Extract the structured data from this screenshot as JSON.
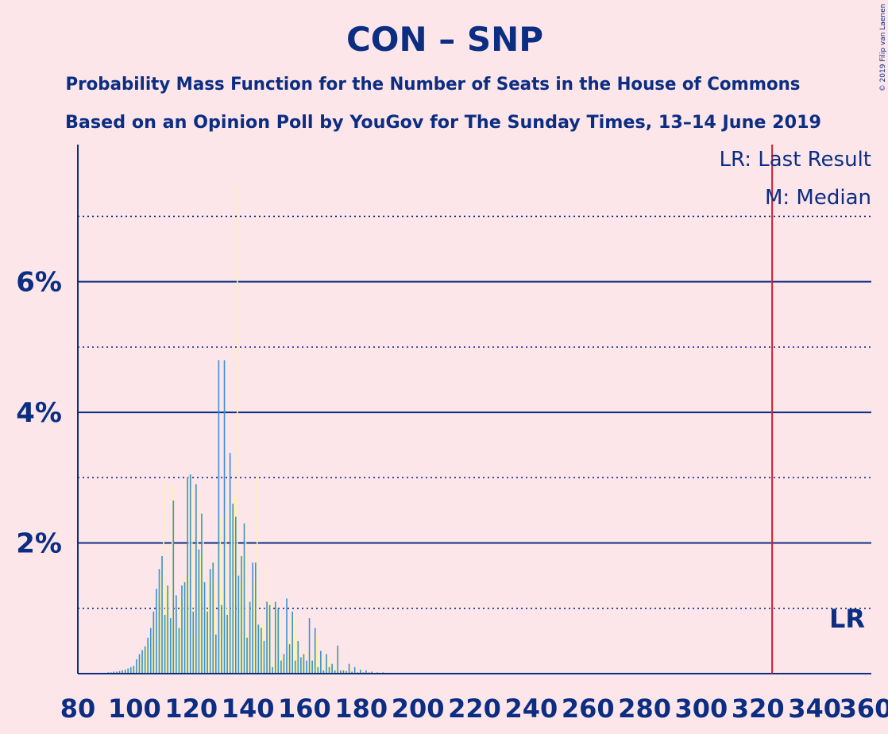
{
  "chart_data": {
    "type": "bar",
    "title": "CON – SNP",
    "subtitle_1": "Probability Mass Function for the Number of Seats in the House of Commons",
    "subtitle_2": "Based on an Opinion Poll by YouGov for The Sunday Times, 13–14 June 2019",
    "copyright": "© 2019 Filip van Laenen",
    "legend": {
      "last_result": "LR: Last Result",
      "median": "M: Median",
      "placement": "top-right"
    },
    "lr_label": "LR",
    "last_result_seats": 325,
    "xlim": [
      80,
      360
    ],
    "x_ticks": [
      80,
      100,
      120,
      140,
      160,
      180,
      200,
      220,
      240,
      260,
      280,
      300,
      320,
      340,
      360
    ],
    "x_tick_labels": [
      "80",
      "100",
      "120",
      "140",
      "160",
      "180",
      "200",
      "220",
      "240",
      "260",
      "280",
      "300",
      "320",
      "340",
      "360"
    ],
    "ylim": [
      0,
      8.1
    ],
    "y_major_ticks": [
      2,
      4,
      6
    ],
    "y_tick_labels": [
      "2%",
      "4%",
      "6%"
    ],
    "y_minor_gridlines": [
      1,
      3,
      5,
      7
    ],
    "colors": {
      "background": "#fde6ea",
      "text": "#0b2d82",
      "bar_blue": "#3a90d6",
      "bar_yellow": "#fff2a0",
      "last_result_line": "#cc2030"
    },
    "x": [
      90,
      91,
      92,
      93,
      94,
      95,
      96,
      97,
      98,
      99,
      100,
      101,
      102,
      103,
      104,
      105,
      106,
      107,
      108,
      109,
      110,
      111,
      112,
      113,
      114,
      115,
      116,
      117,
      118,
      119,
      120,
      121,
      122,
      123,
      124,
      125,
      126,
      127,
      128,
      129,
      130,
      131,
      132,
      133,
      134,
      135,
      136,
      137,
      138,
      139,
      140,
      141,
      142,
      143,
      144,
      145,
      146,
      147,
      148,
      149,
      150,
      151,
      152,
      153,
      154,
      155,
      156,
      157,
      158,
      159,
      160,
      161,
      162,
      163,
      164,
      165,
      166,
      167,
      168,
      169,
      170,
      171,
      172,
      173,
      174,
      175,
      176,
      177,
      178,
      179,
      180,
      181,
      182,
      183,
      184,
      185,
      186,
      187,
      188,
      189,
      190,
      191,
      192,
      193,
      194,
      195,
      196,
      197,
      198,
      199,
      200
    ],
    "series": [
      {
        "color_key": "bar_blue",
        "values": [
          0.01,
          0.02,
          0.02,
          0.03,
          0.03,
          0.04,
          0.05,
          0.06,
          0.08,
          0.1,
          0.12,
          0.22,
          0.3,
          0.36,
          0.42,
          0.55,
          0.7,
          0.95,
          1.3,
          1.6,
          1.8,
          0.9,
          1.35,
          0.85,
          2.65,
          1.2,
          0.7,
          1.35,
          1.4,
          3.0,
          3.05,
          0.95,
          2.9,
          1.9,
          2.45,
          1.4,
          0.95,
          1.6,
          1.7,
          0.6,
          4.8,
          1.05,
          4.8,
          0.9,
          3.38,
          2.6,
          2.4,
          1.5,
          1.8,
          2.3,
          0.55,
          1.1,
          1.7,
          1.7,
          0.75,
          0.7,
          0.5,
          1.1,
          1.05,
          0.1,
          1.1,
          1.0,
          0.2,
          0.3,
          1.15,
          0.45,
          0.95,
          0.2,
          0.5,
          0.25,
          0.3,
          0.2,
          0.85,
          0.2,
          0.7,
          0.1,
          0.35,
          0.05,
          0.3,
          0.1,
          0.15,
          0.05,
          0.43,
          0.05,
          0.05,
          0.04,
          0.15,
          0.03,
          0.1,
          0.02,
          0.06,
          0.02,
          0.05,
          0.02,
          0.03,
          0.01,
          0.02,
          0.01,
          0.02,
          0.01,
          0.01,
          0.01,
          0.01,
          0.01,
          0.005,
          0.005,
          0.005,
          0.005,
          0.005,
          0.005,
          0.005
        ]
      },
      {
        "color_key": "bar_yellow",
        "values": [
          0.0,
          0.01,
          0.01,
          0.02,
          0.02,
          0.03,
          0.04,
          0.05,
          0.06,
          0.08,
          0.1,
          0.15,
          0.25,
          0.35,
          0.4,
          0.5,
          0.6,
          0.85,
          1.2,
          1.5,
          3.0,
          1.35,
          1.3,
          2.9,
          0.75,
          0.65,
          1.15,
          1.45,
          1.5,
          3.05,
          2.85,
          0.6,
          2.85,
          1.85,
          2.5,
          1.0,
          1.45,
          1.75,
          1.4,
          0.4,
          2.4,
          1.3,
          2.45,
          0.95,
          2.5,
          2.7,
          7.45,
          1.4,
          1.85,
          2.3,
          0.6,
          1.15,
          1.4,
          3.05,
          0.75,
          0.75,
          1.65,
          1.1,
          1.1,
          0.15,
          1.05,
          0.95,
          0.25,
          0.3,
          0.5,
          0.85,
          0.9,
          0.55,
          0.45,
          0.25,
          0.35,
          0.15,
          0.35,
          0.25,
          0.6,
          0.4,
          0.3,
          0.1,
          0.25,
          0.15,
          0.15,
          0.05,
          0.4,
          0.05,
          0.05,
          0.04,
          0.12,
          0.03,
          0.08,
          0.02,
          0.05,
          0.02,
          0.04,
          0.02,
          0.03,
          0.01,
          0.02,
          0.01,
          0.02,
          0.01,
          0.01,
          0.01,
          0.01,
          0.005,
          0.005,
          0.005,
          0.005,
          0.005,
          0.005,
          0.005,
          0.005
        ]
      }
    ]
  }
}
